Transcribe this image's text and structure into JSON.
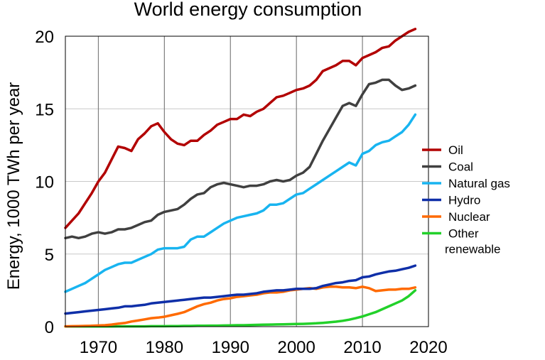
{
  "chart_data": {
    "type": "line",
    "title": "World energy consumption",
    "xlabel": "",
    "ylabel": "Energy, 1000 TWh per year",
    "xlim": [
      1965,
      2020
    ],
    "ylim": [
      0,
      20
    ],
    "x_ticks": [
      1970,
      1980,
      1990,
      2000,
      2010,
      2020
    ],
    "y_ticks": [
      0,
      5,
      10,
      15,
      20
    ],
    "grid": {
      "x": true,
      "y": true
    },
    "legend_position": "right",
    "series": [
      {
        "name": "Oil",
        "color": "#b20000",
        "x": [
          1965,
          1966,
          1967,
          1968,
          1969,
          1970,
          1971,
          1972,
          1973,
          1974,
          1975,
          1976,
          1977,
          1978,
          1979,
          1980,
          1981,
          1982,
          1983,
          1984,
          1985,
          1986,
          1987,
          1988,
          1989,
          1990,
          1991,
          1992,
          1993,
          1994,
          1995,
          1996,
          1997,
          1998,
          1999,
          2000,
          2001,
          2002,
          2003,
          2004,
          2005,
          2006,
          2007,
          2008,
          2009,
          2010,
          2011,
          2012,
          2013,
          2014,
          2015,
          2016,
          2017,
          2018
        ],
        "values": [
          6.8,
          7.3,
          7.8,
          8.5,
          9.2,
          10.0,
          10.6,
          11.5,
          12.4,
          12.3,
          12.1,
          12.9,
          13.3,
          13.8,
          14.0,
          13.4,
          12.9,
          12.6,
          12.5,
          12.8,
          12.8,
          13.2,
          13.5,
          13.9,
          14.1,
          14.3,
          14.3,
          14.6,
          14.5,
          14.8,
          15.0,
          15.4,
          15.8,
          15.9,
          16.1,
          16.3,
          16.4,
          16.6,
          17.0,
          17.6,
          17.8,
          18.0,
          18.3,
          18.3,
          18.0,
          18.5,
          18.7,
          18.9,
          19.2,
          19.3,
          19.7,
          20.0,
          20.3,
          20.5
        ]
      },
      {
        "name": "Coal",
        "color": "#404040",
        "x": [
          1965,
          1966,
          1967,
          1968,
          1969,
          1970,
          1971,
          1972,
          1973,
          1974,
          1975,
          1976,
          1977,
          1978,
          1979,
          1980,
          1981,
          1982,
          1983,
          1984,
          1985,
          1986,
          1987,
          1988,
          1989,
          1990,
          1991,
          1992,
          1993,
          1994,
          1995,
          1996,
          1997,
          1998,
          1999,
          2000,
          2001,
          2002,
          2003,
          2004,
          2005,
          2006,
          2007,
          2008,
          2009,
          2010,
          2011,
          2012,
          2013,
          2014,
          2015,
          2016,
          2017,
          2018
        ],
        "values": [
          6.1,
          6.2,
          6.1,
          6.2,
          6.4,
          6.5,
          6.4,
          6.5,
          6.7,
          6.7,
          6.8,
          7.0,
          7.2,
          7.3,
          7.7,
          7.9,
          8.0,
          8.1,
          8.4,
          8.8,
          9.1,
          9.2,
          9.6,
          9.8,
          9.9,
          9.8,
          9.7,
          9.6,
          9.7,
          9.7,
          9.8,
          10.0,
          10.1,
          10.0,
          10.1,
          10.4,
          10.6,
          11.0,
          11.9,
          12.8,
          13.6,
          14.4,
          15.2,
          15.4,
          15.2,
          16.0,
          16.7,
          16.8,
          17.0,
          17.0,
          16.6,
          16.3,
          16.4,
          16.6
        ]
      },
      {
        "name": "Natural gas",
        "color": "#18b4f0",
        "x": [
          1965,
          1966,
          1967,
          1968,
          1969,
          1970,
          1971,
          1972,
          1973,
          1974,
          1975,
          1976,
          1977,
          1978,
          1979,
          1980,
          1981,
          1982,
          1983,
          1984,
          1985,
          1986,
          1987,
          1988,
          1989,
          1990,
          1991,
          1992,
          1993,
          1994,
          1995,
          1996,
          1997,
          1998,
          1999,
          2000,
          2001,
          2002,
          2003,
          2004,
          2005,
          2006,
          2007,
          2008,
          2009,
          2010,
          2011,
          2012,
          2013,
          2014,
          2015,
          2016,
          2017,
          2018
        ],
        "values": [
          2.4,
          2.6,
          2.8,
          3.0,
          3.3,
          3.6,
          3.9,
          4.1,
          4.3,
          4.4,
          4.4,
          4.6,
          4.8,
          5.0,
          5.3,
          5.4,
          5.4,
          5.4,
          5.5,
          6.0,
          6.2,
          6.2,
          6.5,
          6.8,
          7.1,
          7.3,
          7.5,
          7.6,
          7.7,
          7.8,
          8.0,
          8.4,
          8.4,
          8.5,
          8.8,
          9.1,
          9.2,
          9.5,
          9.8,
          10.1,
          10.4,
          10.7,
          11.0,
          11.3,
          11.1,
          11.9,
          12.1,
          12.5,
          12.7,
          12.8,
          13.1,
          13.4,
          13.9,
          14.6
        ]
      },
      {
        "name": "Hydro",
        "color": "#0f2fa8",
        "x": [
          1965,
          1966,
          1967,
          1968,
          1969,
          1970,
          1971,
          1972,
          1973,
          1974,
          1975,
          1976,
          1977,
          1978,
          1979,
          1980,
          1981,
          1982,
          1983,
          1984,
          1985,
          1986,
          1987,
          1988,
          1989,
          1990,
          1991,
          1992,
          1993,
          1994,
          1995,
          1996,
          1997,
          1998,
          1999,
          2000,
          2001,
          2002,
          2003,
          2004,
          2005,
          2006,
          2007,
          2008,
          2009,
          2010,
          2011,
          2012,
          2013,
          2014,
          2015,
          2016,
          2017,
          2018
        ],
        "values": [
          0.9,
          0.95,
          1.0,
          1.05,
          1.1,
          1.15,
          1.2,
          1.25,
          1.3,
          1.4,
          1.4,
          1.45,
          1.5,
          1.6,
          1.65,
          1.7,
          1.75,
          1.8,
          1.85,
          1.9,
          1.95,
          2.0,
          2.0,
          2.05,
          2.1,
          2.15,
          2.2,
          2.2,
          2.25,
          2.3,
          2.4,
          2.45,
          2.5,
          2.5,
          2.55,
          2.6,
          2.6,
          2.6,
          2.65,
          2.8,
          2.9,
          3.0,
          3.05,
          3.15,
          3.2,
          3.4,
          3.45,
          3.6,
          3.7,
          3.8,
          3.85,
          3.95,
          4.05,
          4.2
        ]
      },
      {
        "name": "Nuclear",
        "color": "#ff6a00",
        "x": [
          1965,
          1966,
          1967,
          1968,
          1969,
          1970,
          1971,
          1972,
          1973,
          1974,
          1975,
          1976,
          1977,
          1978,
          1979,
          1980,
          1981,
          1982,
          1983,
          1984,
          1985,
          1986,
          1987,
          1988,
          1989,
          1990,
          1991,
          1992,
          1993,
          1994,
          1995,
          1996,
          1997,
          1998,
          1999,
          2000,
          2001,
          2002,
          2003,
          2004,
          2005,
          2006,
          2007,
          2008,
          2009,
          2010,
          2011,
          2012,
          2013,
          2014,
          2015,
          2016,
          2017,
          2018
        ],
        "values": [
          0.02,
          0.03,
          0.04,
          0.05,
          0.06,
          0.08,
          0.1,
          0.14,
          0.2,
          0.25,
          0.35,
          0.42,
          0.5,
          0.58,
          0.62,
          0.68,
          0.78,
          0.88,
          1.0,
          1.2,
          1.4,
          1.55,
          1.65,
          1.8,
          1.9,
          1.95,
          2.05,
          2.1,
          2.15,
          2.2,
          2.3,
          2.35,
          2.35,
          2.4,
          2.5,
          2.55,
          2.6,
          2.65,
          2.6,
          2.7,
          2.75,
          2.75,
          2.7,
          2.7,
          2.65,
          2.75,
          2.65,
          2.45,
          2.5,
          2.55,
          2.55,
          2.6,
          2.6,
          2.7
        ]
      },
      {
        "name": "Other renewable",
        "color": "#22d12a",
        "x": [
          1965,
          1966,
          1967,
          1968,
          1969,
          1970,
          1971,
          1972,
          1973,
          1974,
          1975,
          1976,
          1977,
          1978,
          1979,
          1980,
          1981,
          1982,
          1983,
          1984,
          1985,
          1986,
          1987,
          1988,
          1989,
          1990,
          1991,
          1992,
          1993,
          1994,
          1995,
          1996,
          1997,
          1998,
          1999,
          2000,
          2001,
          2002,
          2003,
          2004,
          2005,
          2006,
          2007,
          2008,
          2009,
          2010,
          2011,
          2012,
          2013,
          2014,
          2015,
          2016,
          2017,
          2018
        ],
        "values": [
          0.01,
          0.01,
          0.01,
          0.01,
          0.01,
          0.01,
          0.01,
          0.01,
          0.02,
          0.02,
          0.02,
          0.02,
          0.02,
          0.03,
          0.03,
          0.03,
          0.04,
          0.04,
          0.05,
          0.05,
          0.06,
          0.06,
          0.07,
          0.07,
          0.08,
          0.09,
          0.1,
          0.1,
          0.11,
          0.12,
          0.13,
          0.14,
          0.15,
          0.16,
          0.17,
          0.18,
          0.19,
          0.21,
          0.23,
          0.26,
          0.3,
          0.34,
          0.4,
          0.48,
          0.58,
          0.7,
          0.85,
          1.0,
          1.2,
          1.4,
          1.6,
          1.8,
          2.1,
          2.5
        ]
      }
    ]
  }
}
